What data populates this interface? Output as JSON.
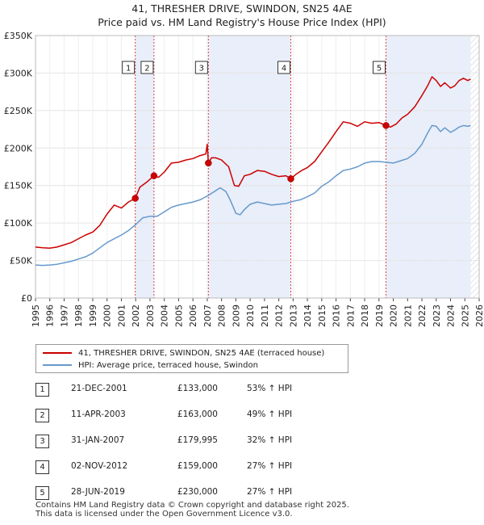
{
  "chart_data": {
    "type": "line",
    "title": "41, THRESHER DRIVE, SWINDON, SN25 4AE",
    "subtitle": "Price paid vs. HM Land Registry's House Price Index (HPI)",
    "xlabel": "",
    "ylabel": "",
    "xlim": [
      1995,
      2026
    ],
    "ylim": [
      0,
      350000
    ],
    "x_ticks": [
      "1995",
      "1996",
      "1997",
      "1998",
      "1999",
      "2000",
      "2001",
      "2002",
      "2003",
      "2004",
      "2005",
      "2006",
      "2007",
      "2008",
      "2009",
      "2010",
      "2011",
      "2012",
      "2013",
      "2014",
      "2015",
      "2016",
      "2017",
      "2018",
      "2019",
      "2020",
      "2021",
      "2022",
      "2023",
      "2024",
      "2025",
      "2026"
    ],
    "y_ticks": [
      {
        "value": 0,
        "label": "£0"
      },
      {
        "value": 50000,
        "label": "£50K"
      },
      {
        "value": 100000,
        "label": "£100K"
      },
      {
        "value": 150000,
        "label": "£150K"
      },
      {
        "value": 200000,
        "label": "£200K"
      },
      {
        "value": 250000,
        "label": "£250K"
      },
      {
        "value": 300000,
        "label": "£300K"
      },
      {
        "value": 350000,
        "label": "£350K"
      }
    ],
    "series": [
      {
        "name": "41, THRESHER DRIVE, SWINDON, SN25 4AE (terraced house)",
        "color": "#cc0000",
        "x": [
          1995.0,
          1995.5,
          1996.0,
          1996.5,
          1997.0,
          1997.5,
          1998.0,
          1998.5,
          1999.0,
          1999.5,
          2000.0,
          2000.5,
          2001.0,
          2001.5,
          2001.97,
          2002.3,
          2002.8,
          2003.28,
          2003.6,
          2004.0,
          2004.5,
          2005.0,
          2005.5,
          2006.0,
          2006.5,
          2006.9,
          2007.0,
          2007.08,
          2007.3,
          2007.6,
          2008.0,
          2008.5,
          2008.9,
          2009.2,
          2009.6,
          2010.0,
          2010.5,
          2011.0,
          2011.5,
          2012.0,
          2012.5,
          2012.84,
          2013.2,
          2013.6,
          2014.0,
          2014.5,
          2015.0,
          2015.5,
          2016.0,
          2016.5,
          2017.0,
          2017.5,
          2018.0,
          2018.5,
          2019.0,
          2019.49,
          2019.8,
          2020.2,
          2020.6,
          2021.0,
          2021.5,
          2022.0,
          2022.4,
          2022.7,
          2023.0,
          2023.3,
          2023.6,
          2024.0,
          2024.3,
          2024.6,
          2024.9,
          2025.2,
          2025.4
        ],
        "values": [
          68000,
          67000,
          66500,
          68000,
          71000,
          74000,
          79000,
          84000,
          88000,
          97000,
          112000,
          124000,
          120000,
          128000,
          133000,
          148000,
          155000,
          163000,
          161000,
          168000,
          180000,
          181000,
          184000,
          186000,
          190000,
          192000,
          205000,
          179995,
          187000,
          187000,
          184000,
          175000,
          150000,
          149000,
          163000,
          165000,
          170000,
          169000,
          165000,
          162000,
          163000,
          159000,
          165000,
          170000,
          174000,
          182000,
          195000,
          208000,
          222000,
          235000,
          233000,
          229000,
          235000,
          233000,
          234000,
          230000,
          228000,
          232000,
          240000,
          245000,
          255000,
          270000,
          283000,
          295000,
          290000,
          282000,
          287000,
          280000,
          283000,
          290000,
          293000,
          290000,
          292000
        ]
      },
      {
        "name": "HPI: Average price, terraced house, Swindon",
        "color": "#6699cc",
        "x": [
          1995.0,
          1995.5,
          1996.0,
          1996.5,
          1997.0,
          1997.5,
          1998.0,
          1998.5,
          1999.0,
          1999.5,
          2000.0,
          2000.5,
          2001.0,
          2001.5,
          2002.0,
          2002.5,
          2003.0,
          2003.5,
          2004.0,
          2004.5,
          2005.0,
          2005.5,
          2006.0,
          2006.5,
          2007.0,
          2007.5,
          2007.9,
          2008.3,
          2008.6,
          2009.0,
          2009.3,
          2009.6,
          2010.0,
          2010.5,
          2011.0,
          2011.5,
          2012.0,
          2012.5,
          2013.0,
          2013.5,
          2014.0,
          2014.5,
          2015.0,
          2015.5,
          2016.0,
          2016.5,
          2017.0,
          2017.5,
          2018.0,
          2018.5,
          2019.0,
          2019.5,
          2020.0,
          2020.5,
          2021.0,
          2021.5,
          2022.0,
          2022.4,
          2022.7,
          2023.0,
          2023.3,
          2023.6,
          2024.0,
          2024.3,
          2024.6,
          2024.9,
          2025.2,
          2025.4
        ],
        "values": [
          44000,
          43500,
          44000,
          45000,
          47000,
          49000,
          52000,
          55000,
          60000,
          67000,
          74000,
          79000,
          84000,
          90000,
          98000,
          107000,
          109000,
          109000,
          115000,
          121000,
          124000,
          126000,
          128000,
          131000,
          136000,
          142000,
          147000,
          142000,
          131000,
          113000,
          111000,
          118000,
          125000,
          128000,
          126000,
          124000,
          125000,
          126000,
          129000,
          131000,
          135000,
          140000,
          149000,
          155000,
          163000,
          170000,
          172000,
          175000,
          180000,
          182000,
          182000,
          181000,
          180000,
          183000,
          186000,
          193000,
          205000,
          220000,
          230000,
          229000,
          222000,
          227000,
          221000,
          224000,
          228000,
          230000,
          229000,
          230000
        ]
      }
    ],
    "sales": [
      {
        "n": "1",
        "x": 2001.97,
        "value": 133000
      },
      {
        "n": "2",
        "x": 2003.28,
        "value": 163000
      },
      {
        "n": "3",
        "x": 2007.08,
        "value": 179995
      },
      {
        "n": "4",
        "x": 2012.84,
        "value": 159000
      },
      {
        "n": "5",
        "x": 2019.49,
        "value": 230000
      }
    ],
    "shaded_periods": [
      [
        2001.97,
        2003.28
      ],
      [
        2007.08,
        2012.84
      ],
      [
        2019.49,
        2025.4
      ]
    ],
    "future_from": 2025.4
  },
  "legend": {
    "property": "41, THRESHER DRIVE, SWINDON, SN25 4AE (terraced house)",
    "hpi": "HPI: Average price, terraced house, Swindon",
    "property_color": "#cc0000",
    "hpi_color": "#6699cc"
  },
  "transactions": [
    {
      "n": "1",
      "date": "21-DEC-2001",
      "price": "£133,000",
      "hpi": "53% ↑ HPI"
    },
    {
      "n": "2",
      "date": "11-APR-2003",
      "price": "£163,000",
      "hpi": "49% ↑ HPI"
    },
    {
      "n": "3",
      "date": "31-JAN-2007",
      "price": "£179,995",
      "hpi": "32% ↑ HPI"
    },
    {
      "n": "4",
      "date": "02-NOV-2012",
      "price": "£159,000",
      "hpi": "27% ↑ HPI"
    },
    {
      "n": "5",
      "date": "28-JUN-2019",
      "price": "£230,000",
      "hpi": "27% ↑ HPI"
    }
  ],
  "footer": {
    "line1": "Contains HM Land Registry data © Crown copyright and database right 2025.",
    "line2": "This data is licensed under the Open Government Licence v3.0."
  }
}
